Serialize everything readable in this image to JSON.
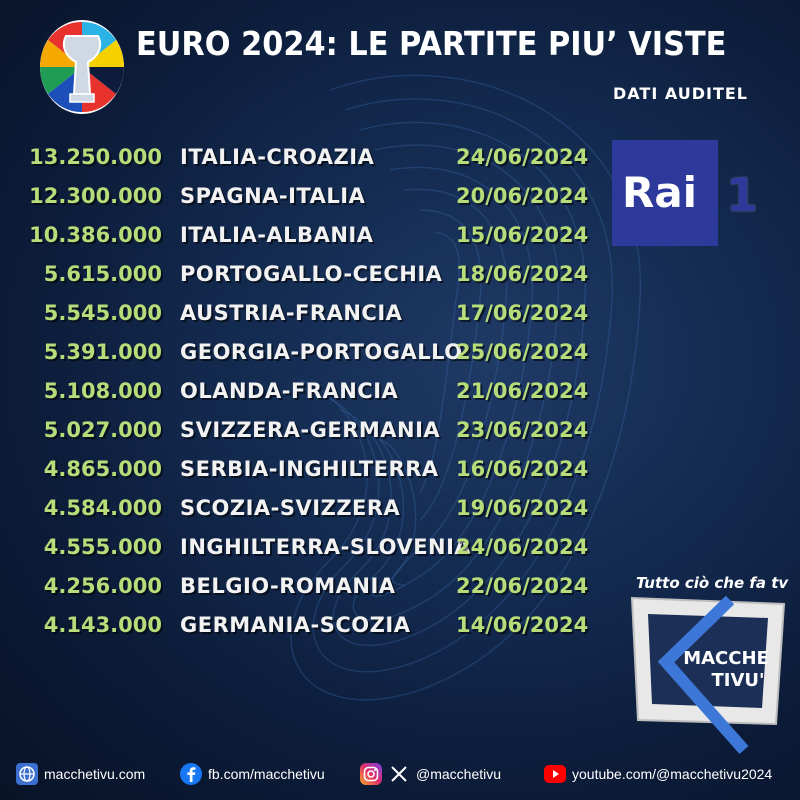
{
  "header": {
    "title": "EURO 2024: LE PARTITE PIU’ VISTE",
    "subtitle": "DATI AUDITEL"
  },
  "matches": [
    {
      "viewers": "13.250.000",
      "match": "ITALIA-CROAZIA",
      "date": "24/06/2024"
    },
    {
      "viewers": "12.300.000",
      "match": "SPAGNA-ITALIA",
      "date": "20/06/2024"
    },
    {
      "viewers": "10.386.000",
      "match": "ITALIA-ALBANIA",
      "date": "15/06/2024"
    },
    {
      "viewers": "5.615.000",
      "match": "PORTOGALLO-CECHIA",
      "date": "18/06/2024"
    },
    {
      "viewers": "5.545.000",
      "match": "AUSTRIA-FRANCIA",
      "date": "17/06/2024"
    },
    {
      "viewers": "5.391.000",
      "match": "GEORGIA-PORTOGALLO",
      "date": "25/06/2024"
    },
    {
      "viewers": "5.108.000",
      "match": "OLANDA-FRANCIA",
      "date": "21/06/2024"
    },
    {
      "viewers": "5.027.000",
      "match": "SVIZZERA-GERMANIA",
      "date": "23/06/2024"
    },
    {
      "viewers": "4.865.000",
      "match": "SERBIA-INGHILTERRA",
      "date": "16/06/2024"
    },
    {
      "viewers": "4.584.000",
      "match": "SCOZIA-SVIZZERA",
      "date": "19/06/2024"
    },
    {
      "viewers": "4.555.000",
      "match": "INGHILTERRA-SLOVENIA",
      "date": "24/06/2024"
    },
    {
      "viewers": "4.256.000",
      "match": "BELGIO-ROMANIA",
      "date": "22/06/2024"
    },
    {
      "viewers": "4.143.000",
      "match": "GERMANIA-SCOZIA",
      "date": "14/06/2024"
    }
  ],
  "broadcaster": {
    "name": "Rai",
    "channel": "1",
    "color": "#2d3a9c"
  },
  "brand": {
    "tagline": "Tutto ciò che fa tv",
    "name_line1": "MACCHE",
    "name_line2": "TIVU'",
    "accent": "#3d78d8"
  },
  "footer": {
    "website": {
      "icon": "globe-icon",
      "text": "macchetivu.com"
    },
    "facebook": {
      "icon": "facebook-icon",
      "text": "fb.com/macchetivu"
    },
    "social": {
      "icons": [
        "instagram-icon",
        "x-icon"
      ],
      "text": "@macchetivu"
    },
    "youtube": {
      "icon": "youtube-icon",
      "text": "youtube.com/@macchetivu2024"
    }
  },
  "colors": {
    "viewers": "#b7dc7a",
    "match": "#f2f2f2",
    "date": "#b7dc7a"
  }
}
